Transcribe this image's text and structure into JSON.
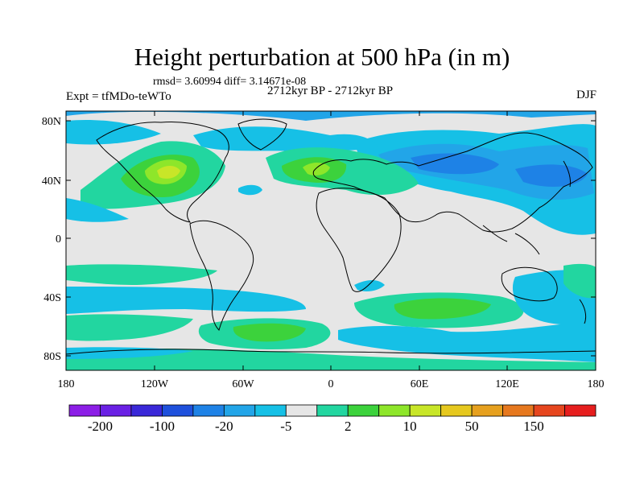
{
  "title": "Height perturbation at 500 hPa (in m)",
  "stats": "rmsd= 3.60994 diff= 3.14671e-08",
  "period": "2712kyr BP - 2712kyr BP",
  "experiment": "Expt = tfMDo-teWTo",
  "season": "DJF",
  "map": {
    "lat_ticks": [
      "80N",
      "40N",
      "0",
      "40S",
      "80S"
    ],
    "lon_ticks": [
      "180",
      "120W",
      "60W",
      "0",
      "60E",
      "120E",
      "180"
    ],
    "lon_range": [
      -180,
      180
    ],
    "lat_range": [
      -90,
      90
    ]
  },
  "colorbar": {
    "colors": [
      "#8c1ee6",
      "#6a20e4",
      "#3a28d8",
      "#1e50dc",
      "#1e82e6",
      "#22a5e8",
      "#16c0e6",
      "#e6e6e6",
      "#22d6a0",
      "#3cd23c",
      "#8ee62a",
      "#c8e628",
      "#e6c81e",
      "#e6a01e",
      "#e6781e",
      "#e6461e",
      "#e61e1e"
    ],
    "labels": [
      "-200",
      "-100",
      "-20",
      "-5",
      "2",
      "10",
      "50",
      "150"
    ]
  }
}
